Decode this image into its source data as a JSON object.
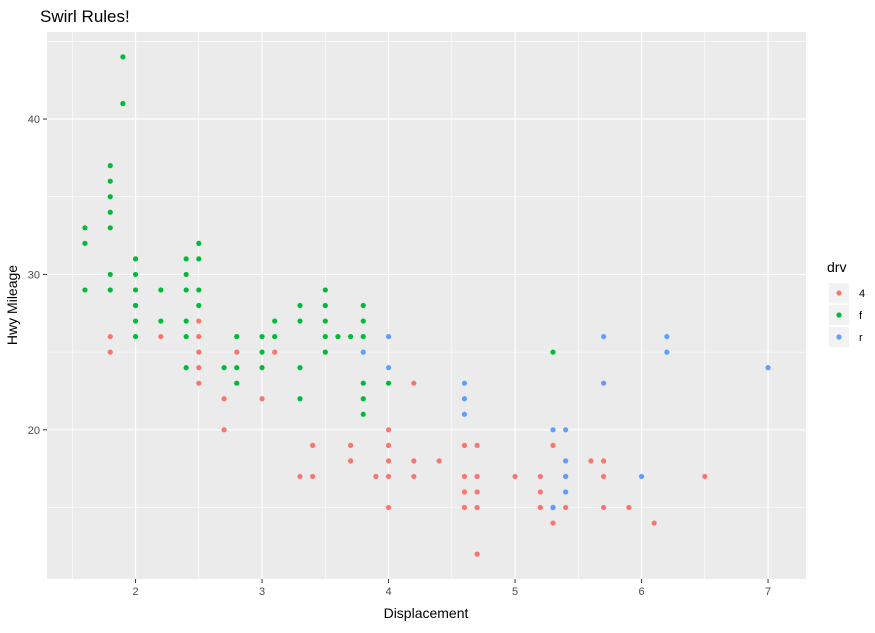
{
  "chart_data": {
    "type": "scatter",
    "title": "Swirl Rules!",
    "xlabel": "Displacement",
    "ylabel": "Hwy Mileage",
    "xlim": [
      1.3,
      7.3
    ],
    "ylim": [
      10.4,
      45.6
    ],
    "x_ticks": [
      2,
      3,
      4,
      5,
      6,
      7
    ],
    "x_tick_labels": [
      "2",
      "3",
      "4",
      "5",
      "6",
      "7"
    ],
    "y_ticks": [
      20,
      30,
      40
    ],
    "y_tick_labels": [
      "20",
      "30",
      "40"
    ],
    "grid": true,
    "legend": {
      "title": "drv",
      "position": "right",
      "items": [
        {
          "label": "4",
          "color": "#F8766D"
        },
        {
          "label": "f",
          "color": "#00BA38"
        },
        {
          "label": "r",
          "color": "#619CFF"
        }
      ]
    },
    "series": [
      {
        "name": "4",
        "color": "#F8766D",
        "points": [
          [
            1.8,
            26
          ],
          [
            1.8,
            25
          ],
          [
            2.0,
            28
          ],
          [
            2.2,
            26
          ],
          [
            2.5,
            27
          ],
          [
            2.5,
            26
          ],
          [
            2.5,
            25
          ],
          [
            2.5,
            24
          ],
          [
            2.5,
            23
          ],
          [
            2.7,
            22
          ],
          [
            2.7,
            20
          ],
          [
            2.8,
            25
          ],
          [
            3.0,
            22
          ],
          [
            3.1,
            25
          ],
          [
            3.3,
            17
          ],
          [
            3.4,
            19
          ],
          [
            3.4,
            17
          ],
          [
            3.7,
            19
          ],
          [
            3.7,
            18
          ],
          [
            3.9,
            17
          ],
          [
            4.0,
            20
          ],
          [
            4.0,
            19
          ],
          [
            4.0,
            18
          ],
          [
            4.0,
            17
          ],
          [
            4.0,
            15
          ],
          [
            4.2,
            23
          ],
          [
            4.2,
            18
          ],
          [
            4.2,
            17
          ],
          [
            4.4,
            18
          ],
          [
            4.6,
            19
          ],
          [
            4.6,
            17
          ],
          [
            4.6,
            16
          ],
          [
            4.6,
            15
          ],
          [
            4.7,
            19
          ],
          [
            4.7,
            17
          ],
          [
            4.7,
            16
          ],
          [
            4.7,
            15
          ],
          [
            4.7,
            12
          ],
          [
            5.0,
            17
          ],
          [
            5.2,
            17
          ],
          [
            5.2,
            16
          ],
          [
            5.2,
            15
          ],
          [
            5.3,
            19
          ],
          [
            5.3,
            15
          ],
          [
            5.3,
            14
          ],
          [
            5.4,
            17
          ],
          [
            5.4,
            15
          ],
          [
            5.6,
            18
          ],
          [
            5.7,
            18
          ],
          [
            5.7,
            17
          ],
          [
            5.7,
            15
          ],
          [
            5.9,
            15
          ],
          [
            6.1,
            14
          ],
          [
            6.5,
            17
          ]
        ]
      },
      {
        "name": "f",
        "color": "#00BA38",
        "points": [
          [
            1.6,
            33
          ],
          [
            1.6,
            32
          ],
          [
            1.6,
            29
          ],
          [
            1.8,
            37
          ],
          [
            1.8,
            36
          ],
          [
            1.8,
            35
          ],
          [
            1.8,
            34
          ],
          [
            1.8,
            33
          ],
          [
            1.8,
            30
          ],
          [
            1.8,
            29
          ],
          [
            1.9,
            44
          ],
          [
            1.9,
            41
          ],
          [
            2.0,
            31
          ],
          [
            2.0,
            30
          ],
          [
            2.0,
            29
          ],
          [
            2.0,
            28
          ],
          [
            2.0,
            27
          ],
          [
            2.0,
            26
          ],
          [
            2.2,
            29
          ],
          [
            2.2,
            27
          ],
          [
            2.4,
            31
          ],
          [
            2.4,
            30
          ],
          [
            2.4,
            29
          ],
          [
            2.4,
            27
          ],
          [
            2.4,
            26
          ],
          [
            2.4,
            24
          ],
          [
            2.5,
            32
          ],
          [
            2.5,
            31
          ],
          [
            2.5,
            29
          ],
          [
            2.5,
            28
          ],
          [
            2.7,
            24
          ],
          [
            2.8,
            26
          ],
          [
            2.8,
            24
          ],
          [
            2.8,
            23
          ],
          [
            3.0,
            26
          ],
          [
            3.0,
            25
          ],
          [
            3.0,
            24
          ],
          [
            3.1,
            27
          ],
          [
            3.1,
            26
          ],
          [
            3.3,
            28
          ],
          [
            3.3,
            27
          ],
          [
            3.3,
            24
          ],
          [
            3.3,
            22
          ],
          [
            3.5,
            29
          ],
          [
            3.5,
            28
          ],
          [
            3.5,
            27
          ],
          [
            3.5,
            26
          ],
          [
            3.5,
            25
          ],
          [
            3.6,
            26
          ],
          [
            3.7,
            26
          ],
          [
            3.8,
            28
          ],
          [
            3.8,
            27
          ],
          [
            3.8,
            26
          ],
          [
            3.8,
            23
          ],
          [
            3.8,
            22
          ],
          [
            3.8,
            21
          ],
          [
            4.0,
            23
          ],
          [
            5.3,
            25
          ]
        ]
      },
      {
        "name": "r",
        "color": "#619CFF",
        "points": [
          [
            3.8,
            25
          ],
          [
            4.0,
            26
          ],
          [
            4.0,
            24
          ],
          [
            4.6,
            23
          ],
          [
            4.6,
            22
          ],
          [
            4.6,
            21
          ],
          [
            5.3,
            20
          ],
          [
            5.3,
            15
          ],
          [
            5.4,
            20
          ],
          [
            5.4,
            18
          ],
          [
            5.4,
            17
          ],
          [
            5.4,
            16
          ],
          [
            5.7,
            26
          ],
          [
            5.7,
            23
          ],
          [
            6.0,
            17
          ],
          [
            6.2,
            26
          ],
          [
            6.2,
            25
          ],
          [
            7.0,
            24
          ]
        ]
      }
    ]
  }
}
